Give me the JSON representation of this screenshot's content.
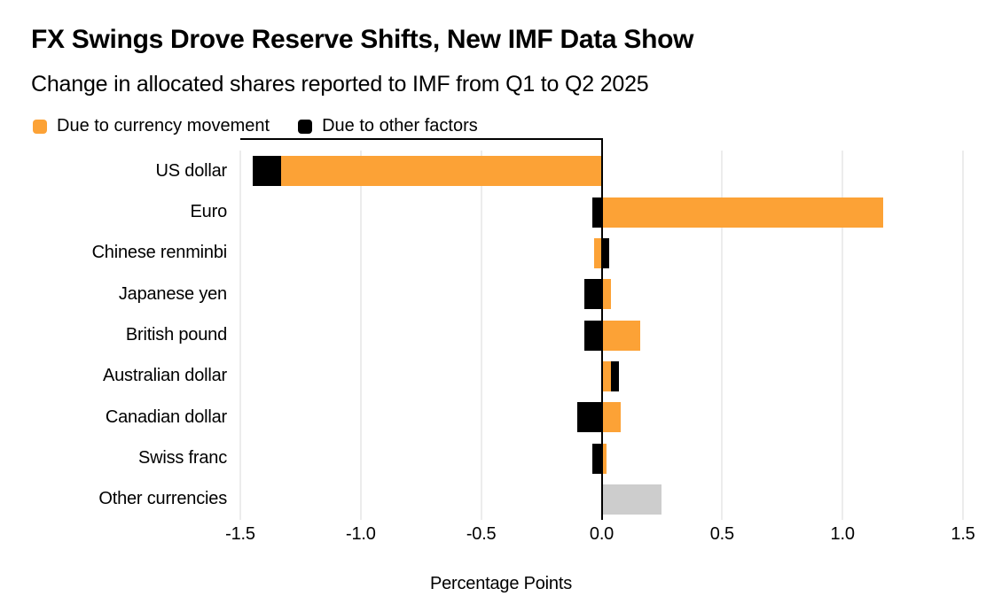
{
  "header": {
    "title": "FX Swings Drove Reserve Shifts, New IMF Data Show",
    "subtitle": "Change in allocated shares reported to IMF from Q1 to Q2 2025"
  },
  "legend": {
    "items": [
      {
        "label": "Due to currency movement",
        "color": "#FCA236",
        "swatch_icon": "orange-square-icon"
      },
      {
        "label": "Due to other factors",
        "color": "#000000",
        "swatch_icon": "black-square-icon"
      }
    ]
  },
  "chart_data": {
    "type": "bar",
    "orientation": "horizontal",
    "title": "FX Swings Drove Reserve Shifts, New IMF Data Show",
    "subtitle": "Change in allocated shares reported to IMF from Q1 to Q2 2025",
    "xlabel": "Percentage Points",
    "ylabel": "",
    "xlim": [
      -1.5,
      1.5
    ],
    "xticks": [
      -1.5,
      -1.0,
      -0.5,
      0.0,
      0.5,
      1.0,
      1.5
    ],
    "xtick_labels": [
      "-1.5",
      "-1.0",
      "-0.5",
      "0.0",
      "0.5",
      "1.0",
      "1.5"
    ],
    "grid": "vertical-gridlines-on",
    "legend_position": "top-left",
    "categories": [
      "US dollar",
      "Euro",
      "Chinese renminbi",
      "Japanese yen",
      "British pound",
      "Australian dollar",
      "Canadian dollar",
      "Swiss franc",
      "Other currencies"
    ],
    "series": [
      {
        "name": "Due to currency movement",
        "color": "#FCA236",
        "in_legend": true,
        "values": [
          -1.33,
          1.17,
          -0.03,
          0.04,
          0.16,
          0.04,
          0.08,
          0.02,
          null
        ]
      },
      {
        "name": "Due to other factors",
        "color": "#000000",
        "in_legend": true,
        "values": [
          -0.12,
          -0.04,
          0.03,
          -0.07,
          -0.07,
          0.03,
          -0.1,
          -0.04,
          null
        ]
      },
      {
        "name": "Other currencies total (gray, unattributed)",
        "color": "#CDCDCD",
        "in_legend": false,
        "values": [
          null,
          null,
          null,
          null,
          null,
          null,
          null,
          null,
          0.25
        ]
      }
    ],
    "axis_colors": {
      "zero_line": "#000000",
      "gridline": "#D9D9D9"
    }
  }
}
